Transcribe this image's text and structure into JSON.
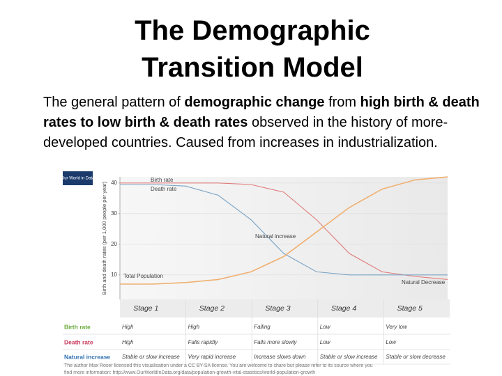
{
  "title_lines": [
    "The Demographic",
    "Transition Model"
  ],
  "body": [
    {
      "text": "The general pattern of ",
      "bold": false
    },
    {
      "text": "demographic change",
      "bold": true
    },
    {
      "text": " from ",
      "bold": false
    },
    {
      "text": "high birth & death rates to low birth & death rates",
      "bold": true
    },
    {
      "text": " observed in the history of more-developed countries. Caused from increases in industrialization.",
      "bold": false
    }
  ],
  "chart_data": {
    "type": "line",
    "logo": "Our World in Data",
    "y_label": "Birth and death rates (per 1,000 people per year)",
    "xlim": [
      0,
      5
    ],
    "ylim": [
      2,
      42
    ],
    "yticks": [
      10,
      20,
      30,
      40
    ],
    "grid": true,
    "x": [
      0,
      0.5,
      1,
      1.5,
      2,
      2.5,
      3,
      3.5,
      4,
      4.5,
      5
    ],
    "series": [
      {
        "name": "Birth rate",
        "color": "#e07a7a",
        "values": [
          40,
          40,
          40,
          40,
          39.5,
          37,
          28,
          17,
          11,
          9.5,
          8.5
        ]
      },
      {
        "name": "Death rate",
        "color": "#7aa3c4",
        "values": [
          39.5,
          39.5,
          39,
          36,
          28,
          17,
          11,
          10,
          10,
          10,
          10
        ]
      },
      {
        "name": "Total Population",
        "color": "#f0b070",
        "values": [
          7,
          7,
          7.5,
          8.5,
          11,
          16,
          24,
          32,
          38,
          41,
          42
        ]
      }
    ],
    "annotations": [
      "Natural increase",
      "Natural Decrease"
    ],
    "stages": [
      "Stage 1",
      "Stage 2",
      "Stage 3",
      "Stage 4",
      "Stage 5"
    ],
    "table": [
      {
        "label": "Birth rate",
        "color": "#6aaa3a",
        "cells": [
          "High",
          "High",
          "Falling",
          "Low",
          "Very low"
        ]
      },
      {
        "label": "Death rate",
        "color": "#c8385a",
        "cells": [
          "High",
          "Falls rapidly",
          "Falls more slowly",
          "Low",
          "Low"
        ]
      },
      {
        "label": "Natural increase",
        "color": "#2e6fb0",
        "cells": [
          "Stable or slow increase",
          "Very rapid increase",
          "Increase slows down",
          "Stable or slow increase",
          "Stable or slow decrease"
        ]
      }
    ],
    "credit": [
      "The author Max Roser licensed this visualisation under a CC BY-SA license. You are welcome to share but please refer to its source where you",
      "find more information: http://www.OurWorldInData.org/data/population-growth-vital-statistics/world-population-growth"
    ]
  }
}
